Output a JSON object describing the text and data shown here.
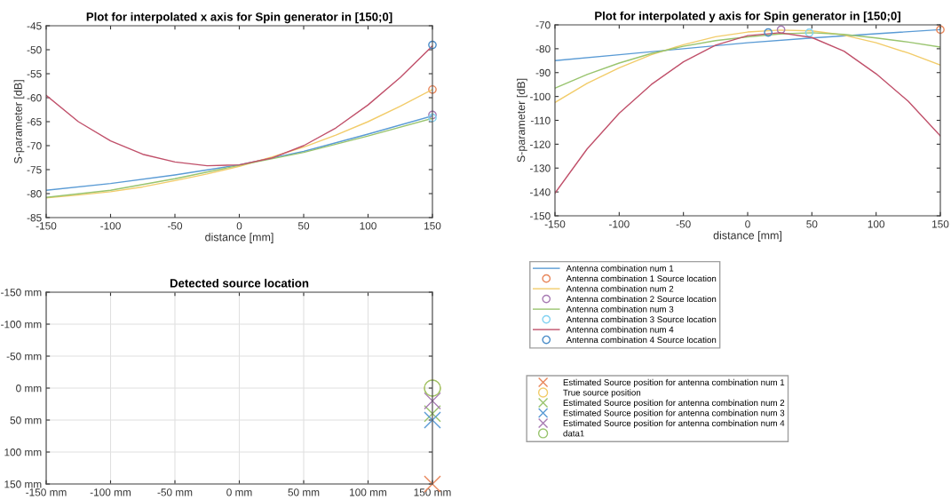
{
  "chart_data": [
    {
      "type": "line",
      "title": "Plot for interpolated x axis for Spin generator in [150;0]",
      "xlabel": "distance [mm]",
      "ylabel": "S-parameter [dB]",
      "xlim": [
        -150,
        150
      ],
      "xticks": [
        -150,
        -100,
        -50,
        0,
        50,
        100,
        150
      ],
      "ylim": [
        -85,
        -45
      ],
      "yticks": [
        -85,
        -80,
        -75,
        -70,
        -65,
        -60,
        -55,
        -50,
        -45
      ],
      "grid": false,
      "legend": false,
      "series": [
        {
          "type": "line",
          "color": "#5a9bd5",
          "x": [
            -150,
            -100,
            -50,
            0,
            50,
            100,
            150
          ],
          "values": [
            -79.3,
            -77.9,
            -76.1,
            -74,
            -71.2,
            -67.6,
            -63.8
          ]
        },
        {
          "type": "scatter",
          "marker": "circle",
          "color": "#e8865a",
          "x": [
            150
          ],
          "values": [
            -58.3
          ]
        },
        {
          "type": "line",
          "color": "#f2cc6a",
          "x": [
            -150,
            -125,
            -100,
            -75,
            -50,
            -25,
            0,
            25,
            50,
            75,
            100,
            125,
            150
          ],
          "values": [
            -80.9,
            -80.3,
            -79.6,
            -78.6,
            -77.3,
            -75.9,
            -74.3,
            -72.4,
            -70.3,
            -67.8,
            -65,
            -61.8,
            -58.3
          ]
        },
        {
          "type": "scatter",
          "marker": "circle",
          "color": "#a77bb3",
          "x": [
            150
          ],
          "values": [
            -63.6
          ]
        },
        {
          "type": "line",
          "color": "#99c46e",
          "x": [
            -150,
            -100,
            -50,
            0,
            50,
            100,
            150
          ],
          "values": [
            -80.8,
            -79.3,
            -76.9,
            -74.1,
            -71.4,
            -68,
            -64.3
          ]
        },
        {
          "type": "scatter",
          "marker": "circle",
          "color": "#82d2f2",
          "x": [
            150
          ],
          "values": [
            -64.2
          ]
        },
        {
          "type": "line",
          "color": "#c0506a",
          "x": [
            -150,
            -125,
            -100,
            -75,
            -50,
            -25,
            0,
            25,
            50,
            75,
            100,
            125,
            150
          ],
          "values": [
            -59.5,
            -65,
            -69,
            -71.8,
            -73.4,
            -74.2,
            -74,
            -72.6,
            -70,
            -66.3,
            -61.5,
            -55.8,
            -49.2
          ]
        },
        {
          "type": "scatter",
          "marker": "circle",
          "color": "#4a8cc8",
          "x": [
            150
          ],
          "values": [
            -49
          ]
        }
      ]
    },
    {
      "type": "line",
      "title": "Plot for interpolated y axis for Spin generator in [150;0]",
      "xlabel": "distance [mm]",
      "ylabel": "S-parameter [dB]",
      "xlim": [
        -150,
        150
      ],
      "xticks": [
        -150,
        -100,
        -50,
        0,
        50,
        100,
        150
      ],
      "ylim": [
        -150,
        -70
      ],
      "yticks": [
        -150,
        -140,
        -130,
        -120,
        -110,
        -100,
        -90,
        -80,
        -70
      ],
      "grid": false,
      "legend": "bottom",
      "series": [
        {
          "type": "line",
          "name": "Antenna combination num 1",
          "color": "#5a9bd5",
          "x": [
            -150,
            -100,
            -50,
            0,
            50,
            100,
            150
          ],
          "values": [
            -85,
            -82.5,
            -80,
            -77.5,
            -75.5,
            -73.7,
            -72
          ]
        },
        {
          "type": "scatter",
          "marker": "circle",
          "name": "Antenna combination 1 Source location",
          "color": "#e8865a",
          "x": [
            150
          ],
          "values": [
            -72
          ]
        },
        {
          "type": "line",
          "name": "Antenna combination num 2",
          "color": "#f2cc6a",
          "x": [
            -150,
            -125,
            -100,
            -75,
            -50,
            -25,
            0,
            25,
            50,
            75,
            100,
            125,
            150
          ],
          "values": [
            -102.5,
            -94.5,
            -88,
            -82.5,
            -78.3,
            -75,
            -73,
            -72.2,
            -72.5,
            -74.3,
            -77.5,
            -81.8,
            -86.8
          ]
        },
        {
          "type": "scatter",
          "marker": "circle",
          "name": "Antenna combination 2 Source location",
          "color": "#a77bb3",
          "x": [
            26
          ],
          "values": [
            -72
          ]
        },
        {
          "type": "line",
          "name": "Antenna combination num 3",
          "color": "#99c46e",
          "x": [
            -150,
            -125,
            -100,
            -75,
            -50,
            -25,
            0,
            25,
            50,
            75,
            100,
            125,
            150
          ],
          "values": [
            -96.5,
            -90.8,
            -86,
            -82,
            -79,
            -76.6,
            -75,
            -73.8,
            -73.3,
            -74,
            -75.5,
            -77.2,
            -79.3
          ]
        },
        {
          "type": "scatter",
          "marker": "circle",
          "name": "Antenna combination 3 Source location",
          "color": "#82d2f2",
          "x": [
            48
          ],
          "values": [
            -73.3
          ]
        },
        {
          "type": "line",
          "name": "Antenna combination num 4",
          "color": "#c0506a",
          "x": [
            -150,
            -125,
            -100,
            -75,
            -50,
            -25,
            0,
            25,
            50,
            75,
            100,
            125,
            150
          ],
          "values": [
            -140.5,
            -122,
            -107,
            -95,
            -85.5,
            -78.5,
            -74.5,
            -73.3,
            -75.3,
            -81,
            -90.5,
            -102,
            -116.5
          ]
        },
        {
          "type": "scatter",
          "marker": "circle",
          "name": "Antenna combination 4 Source location",
          "color": "#4a8cc8",
          "x": [
            16
          ],
          "values": [
            -73.2
          ]
        }
      ]
    },
    {
      "type": "scatter",
      "title": "Detected source location",
      "xlim": [
        -150,
        150
      ],
      "xticks": [
        {
          "value": -150,
          "label": "-150 mm"
        },
        {
          "value": -100,
          "label": "-100 mm"
        },
        {
          "value": -50,
          "label": "-50 mm"
        },
        {
          "value": 0,
          "label": "0 mm"
        },
        {
          "value": 50,
          "label": "50 mm"
        },
        {
          "value": 100,
          "label": "100 mm"
        },
        {
          "value": 150,
          "label": "150 mm"
        }
      ],
      "ylim": [
        150,
        -150
      ],
      "yticks": [
        {
          "value": -150,
          "label": "-150 mm"
        },
        {
          "value": -100,
          "label": "-100 mm"
        },
        {
          "value": -50,
          "label": "-50 mm"
        },
        {
          "value": 0,
          "label": "0 mm"
        },
        {
          "value": 50,
          "label": "50 mm"
        },
        {
          "value": 100,
          "label": "100 mm"
        },
        {
          "value": 150,
          "label": "150 mm"
        }
      ],
      "grid": true,
      "legend": "right",
      "series": [
        {
          "name": "Estimated Source position for antenna combination num 1",
          "marker": "cross",
          "color": "#e8865a",
          "x": [
            150
          ],
          "values": [
            150
          ]
        },
        {
          "name": "True source position",
          "marker": "circle",
          "color": "#f2cc6a",
          "x": [
            150
          ],
          "values": [
            0
          ]
        },
        {
          "name": "Estimated Source position for antenna combination num 2",
          "marker": "cross",
          "color": "#99c46e",
          "x": [
            150
          ],
          "values": [
            40
          ]
        },
        {
          "name": "Estimated Source position for antenna combination num 3",
          "marker": "cross",
          "color": "#5a9bd5",
          "x": [
            150
          ],
          "values": [
            50
          ]
        },
        {
          "name": "Estimated Source position for antenna combination num 4",
          "marker": "cross",
          "color": "#a77bb3",
          "x": [
            150
          ],
          "values": [
            20
          ]
        },
        {
          "name": "data1",
          "marker": "circle",
          "color": "#99c46e",
          "x": [
            150
          ],
          "values": [
            0
          ]
        }
      ]
    }
  ]
}
